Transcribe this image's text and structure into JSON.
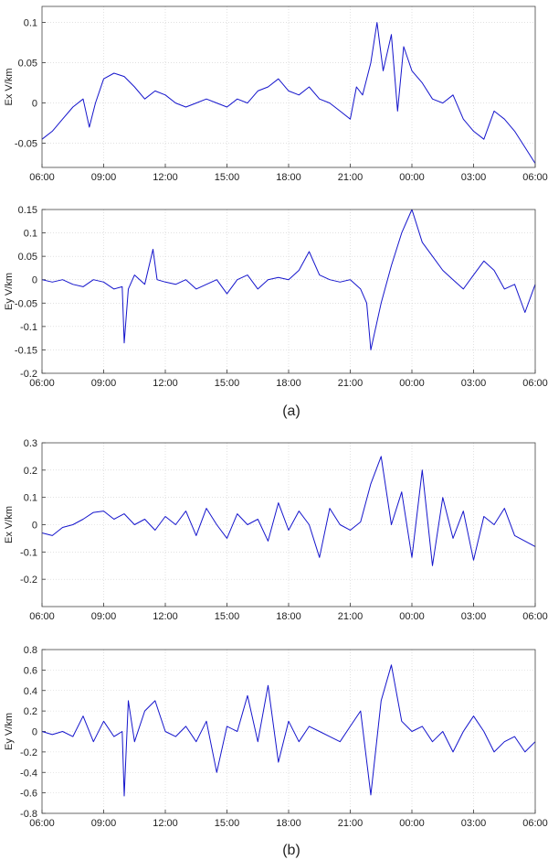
{
  "chart_data": [
    {
      "type": "line",
      "panel": "a-top",
      "ylabel": "Ex V/km",
      "ylim": [
        -0.08,
        0.12
      ],
      "yticks": [
        -0.05,
        0,
        0.05,
        0.1
      ],
      "ytick_labels": [
        "-0.05",
        "0",
        "0.05",
        "0.1"
      ],
      "xticks": [
        "06:00",
        "09:00",
        "12:00",
        "15:00",
        "18:00",
        "21:00",
        "00:00",
        "03:00",
        "06:00"
      ],
      "grid": true,
      "color": "#1515cc",
      "x": [
        0,
        0.5,
        1,
        1.5,
        2,
        2.3,
        2.6,
        3,
        3.5,
        4,
        4.5,
        5,
        5.5,
        6,
        6.5,
        7,
        7.5,
        8,
        8.5,
        9,
        9.5,
        10,
        10.5,
        11,
        11.5,
        12,
        12.5,
        13,
        13.5,
        14,
        14.5,
        15,
        15.3,
        15.6,
        16,
        16.3,
        16.6,
        17,
        17.3,
        17.6,
        18,
        18.5,
        19,
        19.5,
        20,
        20.5,
        21,
        21.5,
        22,
        22.5,
        23,
        23.5,
        24
      ],
      "values": [
        -0.045,
        -0.035,
        -0.02,
        -0.005,
        0.005,
        -0.03,
        0.0,
        0.03,
        0.037,
        0.033,
        0.02,
        0.005,
        0.015,
        0.01,
        0.0,
        -0.005,
        0.0,
        0.005,
        0.0,
        -0.005,
        0.005,
        0.0,
        0.015,
        0.02,
        0.03,
        0.015,
        0.01,
        0.02,
        0.005,
        0.0,
        -0.01,
        -0.02,
        0.02,
        0.01,
        0.05,
        0.1,
        0.04,
        0.085,
        -0.01,
        0.07,
        0.04,
        0.025,
        0.005,
        0.0,
        0.01,
        -0.02,
        -0.035,
        -0.045,
        -0.01,
        -0.02,
        -0.035,
        -0.055,
        -0.075
      ]
    },
    {
      "type": "line",
      "panel": "a-bottom",
      "ylabel": "Ey V/km",
      "ylim": [
        -0.2,
        0.15
      ],
      "yticks": [
        -0.2,
        -0.15,
        -0.1,
        -0.05,
        0,
        0.05,
        0.1,
        0.15
      ],
      "ytick_labels": [
        "-0.2",
        "-0.15",
        "-0.1",
        "-0.05",
        "0",
        "0.05",
        "0.1",
        "0.15"
      ],
      "xticks": [
        "06:00",
        "09:00",
        "12:00",
        "15:00",
        "18:00",
        "21:00",
        "00:00",
        "03:00",
        "06:00"
      ],
      "grid": true,
      "color": "#1515cc",
      "x": [
        0,
        0.5,
        1,
        1.5,
        2,
        2.5,
        3,
        3.5,
        3.9,
        4,
        4.2,
        4.5,
        5,
        5.4,
        5.6,
        6,
        6.5,
        7,
        7.5,
        8,
        8.5,
        9,
        9.5,
        10,
        10.5,
        11,
        11.5,
        12,
        12.5,
        13,
        13.5,
        14,
        14.5,
        15,
        15.5,
        15.8,
        16,
        16.5,
        17,
        17.5,
        18,
        18.5,
        19,
        19.5,
        20,
        20.5,
        21,
        21.5,
        22,
        22.5,
        23,
        23.5,
        24
      ],
      "values": [
        0.0,
        -0.005,
        0.0,
        -0.01,
        -0.015,
        0.0,
        -0.005,
        -0.02,
        -0.015,
        -0.135,
        -0.02,
        0.01,
        -0.01,
        0.065,
        0.0,
        -0.005,
        -0.01,
        0.0,
        -0.02,
        -0.01,
        0.0,
        -0.03,
        0.0,
        0.01,
        -0.02,
        0.0,
        0.005,
        0.0,
        0.02,
        0.06,
        0.01,
        0.0,
        -0.005,
        0.0,
        -0.02,
        -0.05,
        -0.15,
        -0.05,
        0.03,
        0.1,
        0.15,
        0.08,
        0.05,
        0.02,
        0.0,
        -0.02,
        0.01,
        0.04,
        0.02,
        -0.02,
        -0.01,
        -0.07,
        -0.01
      ]
    },
    {
      "type": "line",
      "panel": "b-top",
      "ylabel": "Ex V/km",
      "ylim": [
        -0.3,
        0.3
      ],
      "yticks": [
        -0.2,
        -0.1,
        0,
        0.1,
        0.2,
        0.3
      ],
      "ytick_labels": [
        "-0.2",
        "-0.1",
        "0",
        "0.1",
        "0.2",
        "0.3"
      ],
      "xticks": [
        "06:00",
        "09:00",
        "12:00",
        "15:00",
        "18:00",
        "21:00",
        "00:00",
        "03:00",
        "06:00"
      ],
      "grid": true,
      "color": "#1515cc",
      "x": [
        0,
        0.5,
        1,
        1.5,
        2,
        2.5,
        3,
        3.5,
        4,
        4.5,
        5,
        5.5,
        6,
        6.5,
        7,
        7.5,
        8,
        8.5,
        9,
        9.5,
        10,
        10.5,
        11,
        11.5,
        12,
        12.5,
        13,
        13.5,
        14,
        14.5,
        15,
        15.5,
        16,
        16.5,
        17,
        17.5,
        18,
        18.5,
        19,
        19.5,
        20,
        20.5,
        21,
        21.5,
        22,
        22.5,
        23,
        23.5,
        24
      ],
      "values": [
        -0.03,
        -0.04,
        -0.01,
        0.0,
        0.02,
        0.045,
        0.05,
        0.02,
        0.04,
        0.0,
        0.02,
        -0.02,
        0.03,
        0.0,
        0.05,
        -0.04,
        0.06,
        0.0,
        -0.05,
        0.04,
        0.0,
        0.02,
        -0.06,
        0.08,
        -0.02,
        0.05,
        0.0,
        -0.12,
        0.06,
        0.0,
        -0.02,
        0.01,
        0.15,
        0.25,
        0.0,
        0.12,
        -0.12,
        0.2,
        -0.15,
        0.1,
        -0.05,
        0.05,
        -0.13,
        0.03,
        0.0,
        0.06,
        -0.04,
        -0.06,
        -0.08
      ]
    },
    {
      "type": "line",
      "panel": "b-bottom",
      "ylabel": "Ey V/km",
      "ylim": [
        -0.8,
        0.8
      ],
      "yticks": [
        -0.8,
        -0.6,
        -0.4,
        -0.2,
        0,
        0.2,
        0.4,
        0.6,
        0.8
      ],
      "ytick_labels": [
        "-0.8",
        "-0.6",
        "-0.4",
        "-0.2",
        "0",
        "0.2",
        "0.4",
        "0.6",
        "0.8"
      ],
      "xticks": [
        "06:00",
        "09:00",
        "12:00",
        "15:00",
        "18:00",
        "21:00",
        "00:00",
        "03:00",
        "06:00"
      ],
      "grid": true,
      "color": "#1515cc",
      "x": [
        0,
        0.5,
        1,
        1.5,
        2,
        2.5,
        3,
        3.5,
        3.9,
        4,
        4.2,
        4.5,
        5,
        5.5,
        6,
        6.5,
        7,
        7.5,
        8,
        8.5,
        9,
        9.5,
        10,
        10.5,
        11,
        11.5,
        12,
        12.5,
        13,
        13.5,
        14,
        14.5,
        15,
        15.5,
        16,
        16.5,
        17,
        17.5,
        18,
        18.5,
        19,
        19.5,
        20,
        20.5,
        21,
        21.5,
        22,
        22.5,
        23,
        23.5,
        24
      ],
      "values": [
        0.0,
        -0.03,
        0.0,
        -0.05,
        0.15,
        -0.1,
        0.1,
        -0.05,
        0.0,
        -0.63,
        0.3,
        -0.1,
        0.2,
        0.3,
        0.0,
        -0.05,
        0.05,
        -0.1,
        0.1,
        -0.4,
        0.05,
        0.0,
        0.35,
        -0.1,
        0.45,
        -0.3,
        0.1,
        -0.1,
        0.05,
        0.0,
        -0.05,
        -0.1,
        0.05,
        0.2,
        -0.62,
        0.3,
        0.65,
        0.1,
        0.0,
        0.05,
        -0.1,
        0.0,
        -0.2,
        0.0,
        0.15,
        0.0,
        -0.2,
        -0.1,
        -0.05,
        -0.2,
        -0.1
      ]
    }
  ],
  "captions": [
    "(a)",
    "(b)"
  ]
}
